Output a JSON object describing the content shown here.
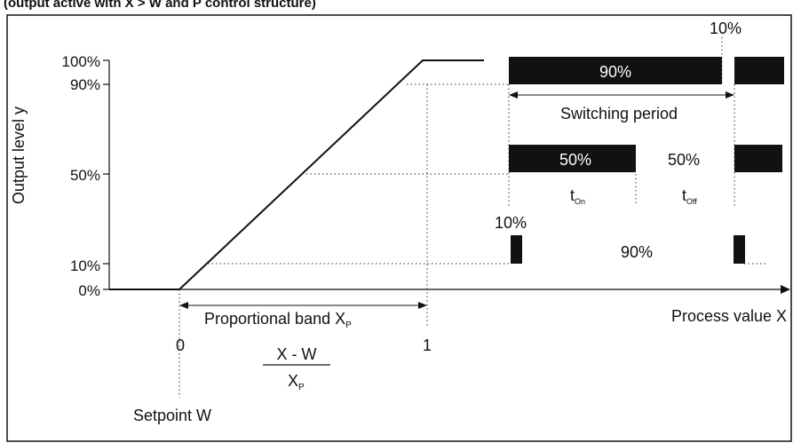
{
  "header": {
    "text": "(output active with X > W and P control structure)"
  },
  "axes": {
    "y_label": "Output level y",
    "x_label": "Process value X",
    "y_ticks": [
      "100%",
      "90%",
      "50%",
      "10%",
      "0%"
    ],
    "x_ticks": [
      "0",
      "1"
    ],
    "setpoint_label": "Setpoint W",
    "band_label": "Proportional band X",
    "band_subscript": "P",
    "formula_numerator": "X - W",
    "formula_denominator": "X",
    "formula_denominator_subscript": "P"
  },
  "pwm": {
    "level_90": {
      "on_label": "90%",
      "off_label": "10%",
      "on_fraction": 0.9
    },
    "period_label": "Switching period",
    "level_50": {
      "on_label": "50%",
      "off_label": "50%",
      "on_fraction": 0.5,
      "t_on": "t",
      "t_on_sub": "On",
      "t_off": "t",
      "t_off_sub": "Off"
    },
    "level_10": {
      "on_label": "10%",
      "off_label": "90%",
      "on_fraction": 0.1
    }
  },
  "colors": {
    "bar": "#111111",
    "line": "#111111",
    "guide": "#333333"
  }
}
